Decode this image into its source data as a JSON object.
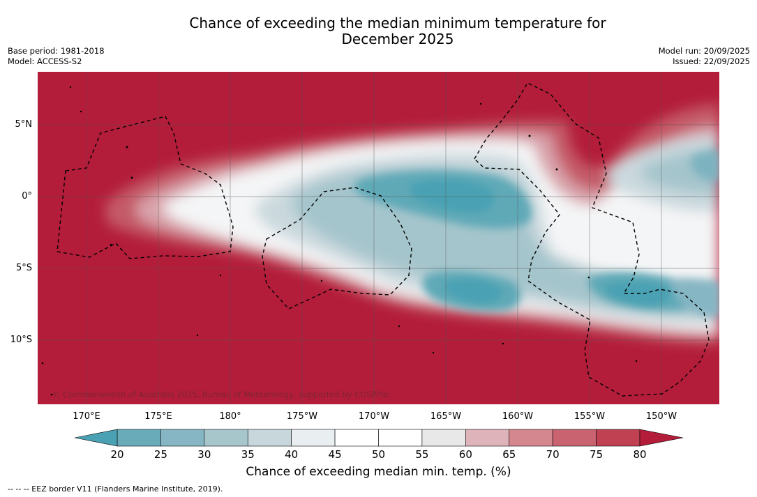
{
  "title_line1": "Chance of exceeding the median minimum temperature for",
  "title_line2": "December 2025",
  "base_period": "Base period: 1981-2018",
  "model": "Model: ACCESS-S2",
  "model_run": "Model run: 20/09/2025",
  "issued": "Issued: 22/09/2025",
  "copyright": "© Commonwealth of Australia 2025, Bureau of Meteorology, supported by COSPPac",
  "longitude_labels": [
    "170°E",
    "175°E",
    "180°",
    "175°W",
    "170°W",
    "165°W",
    "160°W",
    "155°W",
    "150°W"
  ],
  "latitude_labels": [
    "5°N",
    "0°",
    "5°S",
    "10°S"
  ],
  "colorbar": {
    "ticks": [
      "20",
      "25",
      "30",
      "35",
      "40",
      "45",
      "50",
      "55",
      "60",
      "65",
      "70",
      "75",
      "80"
    ],
    "colors": [
      "#6aabb9",
      "#86b6c4",
      "#a6c6cc",
      "#c7d7dc",
      "#e9eef0",
      "#ffffff",
      "#ffffff",
      "#e8e8e8",
      "#dfb3ba",
      "#d4878f",
      "#c96370",
      "#bf4152"
    ],
    "under_color": "#4aa1b3",
    "over_color": "#b31d3a",
    "label": "Chance of exceeding median min. temp. (%)"
  },
  "legend_footnote": "--  --  -- EEZ border V11 (Flanders Marine Institute, 2019)."
}
